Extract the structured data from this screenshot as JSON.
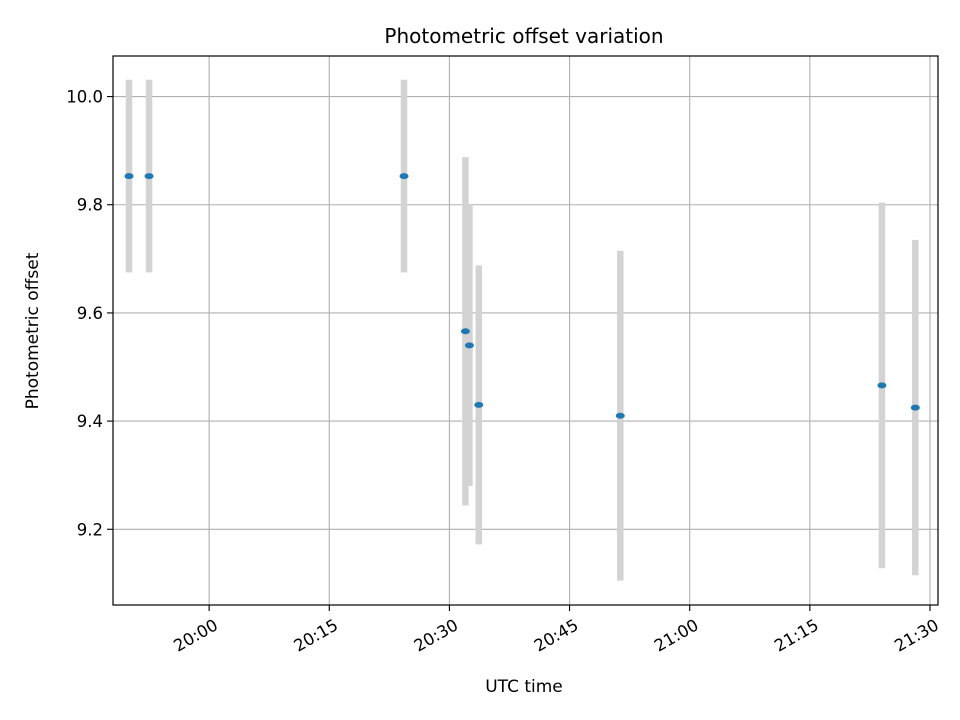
{
  "chart_data": {
    "type": "scatter",
    "title": "Photometric offset variation",
    "xlabel": "UTC time",
    "ylabel": "Photometric offset",
    "x_ticks": [
      "20:00",
      "20:15",
      "20:30",
      "20:45",
      "21:00",
      "21:15",
      "21:30"
    ],
    "y_ticks": [
      "9.2",
      "9.4",
      "9.6",
      "9.8",
      "10.0"
    ],
    "xlim": [
      "19:48",
      "21:31"
    ],
    "ylim": [
      9.06,
      10.075
    ],
    "grid": true,
    "point_color": "#1f77b4",
    "errorbar_color": "#d3d3d3",
    "points": [
      {
        "time": "19:50:00",
        "y": 9.853,
        "err": 0.178
      },
      {
        "time": "19:52:30",
        "y": 9.853,
        "err": 0.178
      },
      {
        "time": "20:24:20",
        "y": 9.853,
        "err": 0.178
      },
      {
        "time": "20:32:00",
        "y": 9.566,
        "err": 0.322
      },
      {
        "time": "20:32:30",
        "y": 9.54,
        "err": 0.26
      },
      {
        "time": "20:33:40",
        "y": 9.43,
        "err": 0.258
      },
      {
        "time": "20:51:20",
        "y": 9.41,
        "err": 0.305
      },
      {
        "time": "21:24:00",
        "y": 9.466,
        "err": 0.338
      },
      {
        "time": "21:28:10",
        "y": 9.425,
        "err": 0.31
      }
    ]
  }
}
